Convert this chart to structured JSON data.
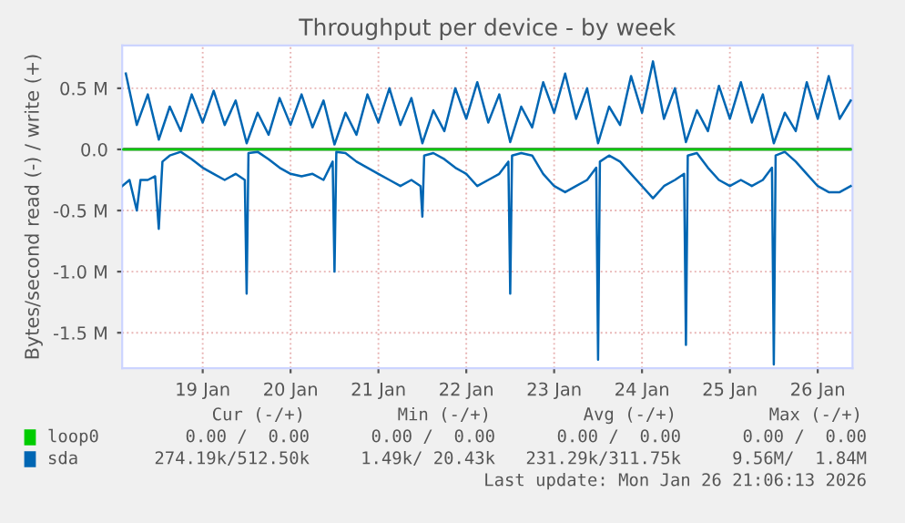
{
  "chart_data": {
    "type": "line",
    "title": "Throughput per device - by week",
    "ylabel": "Bytes/second read (-) / write (+)",
    "xlim": [
      "2026-01-18T14:00",
      "2026-01-26T21:30"
    ],
    "xticks": [
      {
        "value": "2026-01-19T12:00",
        "label": "19 Jan"
      },
      {
        "value": "2026-01-20T12:00",
        "label": "20 Jan"
      },
      {
        "value": "2026-01-21T12:00",
        "label": "21 Jan"
      },
      {
        "value": "2026-01-22T12:00",
        "label": "22 Jan"
      },
      {
        "value": "2026-01-23T12:00",
        "label": "23 Jan"
      },
      {
        "value": "2026-01-24T12:00",
        "label": "24 Jan"
      },
      {
        "value": "2026-01-25T12:00",
        "label": "25 Jan"
      },
      {
        "value": "2026-01-26T12:00",
        "label": "26 Jan"
      }
    ],
    "ylim": [
      -1.79,
      0.85
    ],
    "yticks": [
      {
        "value": -1.5,
        "label": "-1.5 M"
      },
      {
        "value": -1.0,
        "label": "-1.0 M"
      },
      {
        "value": -0.5,
        "label": "-0.5 M"
      },
      {
        "value": 0,
        "label": "0.0"
      },
      {
        "value": 0.5,
        "label": "0.5 M"
      }
    ],
    "grid": true,
    "legend": "bottom",
    "ref_lines": [
      {
        "axis": "y",
        "value": 0,
        "color": "#000000"
      }
    ],
    "series": [
      {
        "name": "loop0",
        "color": "#00cc00",
        "x": [
          "2026-01-18T14:00",
          "2026-01-26T21:00"
        ],
        "values": [
          0,
          0
        ]
      },
      {
        "name": "sda",
        "color": "#0066b3",
        "x": [
          "2026-01-18T15:00",
          "2026-01-18T18:00",
          "2026-01-18T21:00",
          "2026-01-19T00:00",
          "2026-01-19T03:00",
          "2026-01-19T06:00",
          "2026-01-19T09:00",
          "2026-01-19T12:00",
          "2026-01-19T15:00",
          "2026-01-19T18:00",
          "2026-01-19T21:00",
          "2026-01-20T00:00",
          "2026-01-20T03:00",
          "2026-01-20T06:00",
          "2026-01-20T09:00",
          "2026-01-20T12:00",
          "2026-01-20T15:00",
          "2026-01-20T18:00",
          "2026-01-20T21:00",
          "2026-01-21T00:00",
          "2026-01-21T03:00",
          "2026-01-21T06:00",
          "2026-01-21T09:00",
          "2026-01-21T12:00",
          "2026-01-21T15:00",
          "2026-01-21T18:00",
          "2026-01-21T21:00",
          "2026-01-22T00:00",
          "2026-01-22T03:00",
          "2026-01-22T06:00",
          "2026-01-22T09:00",
          "2026-01-22T12:00",
          "2026-01-22T15:00",
          "2026-01-22T18:00",
          "2026-01-22T21:00",
          "2026-01-23T00:00",
          "2026-01-23T03:00",
          "2026-01-23T06:00",
          "2026-01-23T09:00",
          "2026-01-23T12:00",
          "2026-01-23T15:00",
          "2026-01-23T18:00",
          "2026-01-23T21:00",
          "2026-01-24T00:00",
          "2026-01-24T03:00",
          "2026-01-24T06:00",
          "2026-01-24T09:00",
          "2026-01-24T12:00",
          "2026-01-24T15:00",
          "2026-01-24T18:00",
          "2026-01-24T21:00",
          "2026-01-25T00:00",
          "2026-01-25T03:00",
          "2026-01-25T06:00",
          "2026-01-25T09:00",
          "2026-01-25T12:00",
          "2026-01-25T15:00",
          "2026-01-25T18:00",
          "2026-01-25T21:00",
          "2026-01-26T00:00",
          "2026-01-26T03:00",
          "2026-01-26T06:00",
          "2026-01-26T09:00",
          "2026-01-26T12:00",
          "2026-01-26T15:00",
          "2026-01-26T18:00",
          "2026-01-26T21:00"
        ],
        "values": [
          0.62,
          0.2,
          0.45,
          0.08,
          0.35,
          0.15,
          0.45,
          0.22,
          0.48,
          0.2,
          0.4,
          0.05,
          0.3,
          0.12,
          0.42,
          0.2,
          0.45,
          0.18,
          0.4,
          0.04,
          0.3,
          0.12,
          0.45,
          0.22,
          0.5,
          0.2,
          0.42,
          0.05,
          0.32,
          0.15,
          0.5,
          0.25,
          0.55,
          0.22,
          0.45,
          0.06,
          0.35,
          0.18,
          0.55,
          0.3,
          0.62,
          0.25,
          0.5,
          0.05,
          0.35,
          0.2,
          0.6,
          0.3,
          0.72,
          0.25,
          0.5,
          0.06,
          0.32,
          0.15,
          0.52,
          0.25,
          0.55,
          0.22,
          0.45,
          0.05,
          0.3,
          0.15,
          0.55,
          0.25,
          0.6,
          0.25,
          0.4
        ]
      },
      {
        "color": "#0066b3",
        "x": [
          "2026-01-18T14:00",
          "2026-01-18T16:00",
          "2026-01-18T18:00",
          "2026-01-18T19:00",
          "2026-01-18T21:00",
          "2026-01-18T23:00",
          "2026-01-19T00:00",
          "2026-01-19T01:00",
          "2026-01-19T03:00",
          "2026-01-19T06:00",
          "2026-01-19T09:00",
          "2026-01-19T12:00",
          "2026-01-19T15:00",
          "2026-01-19T18:00",
          "2026-01-19T21:00",
          "2026-01-19T23:30",
          "2026-01-20T00:00",
          "2026-01-20T00:30",
          "2026-01-20T03:00",
          "2026-01-20T06:00",
          "2026-01-20T09:00",
          "2026-01-20T12:00",
          "2026-01-20T15:00",
          "2026-01-20T18:00",
          "2026-01-20T21:00",
          "2026-01-20T23:30",
          "2026-01-21T00:00",
          "2026-01-21T00:30",
          "2026-01-21T03:00",
          "2026-01-21T06:00",
          "2026-01-21T09:00",
          "2026-01-21T12:00",
          "2026-01-21T15:00",
          "2026-01-21T18:00",
          "2026-01-21T21:00",
          "2026-01-21T23:30",
          "2026-01-22T00:00",
          "2026-01-22T00:30",
          "2026-01-22T03:00",
          "2026-01-22T06:00",
          "2026-01-22T09:00",
          "2026-01-22T12:00",
          "2026-01-22T15:00",
          "2026-01-22T18:00",
          "2026-01-22T21:00",
          "2026-01-22T23:30",
          "2026-01-23T00:00",
          "2026-01-23T00:30",
          "2026-01-23T03:00",
          "2026-01-23T06:00",
          "2026-01-23T09:00",
          "2026-01-23T12:00",
          "2026-01-23T15:00",
          "2026-01-23T18:00",
          "2026-01-23T21:00",
          "2026-01-23T23:30",
          "2026-01-24T00:00",
          "2026-01-24T00:30",
          "2026-01-24T03:00",
          "2026-01-24T06:00",
          "2026-01-24T09:00",
          "2026-01-24T12:00",
          "2026-01-24T15:00",
          "2026-01-24T18:00",
          "2026-01-24T21:00",
          "2026-01-24T23:30",
          "2026-01-25T00:00",
          "2026-01-25T00:30",
          "2026-01-25T03:00",
          "2026-01-25T06:00",
          "2026-01-25T09:00",
          "2026-01-25T12:00",
          "2026-01-25T15:00",
          "2026-01-25T18:00",
          "2026-01-25T21:00",
          "2026-01-25T23:30",
          "2026-01-26T00:00",
          "2026-01-26T00:30",
          "2026-01-26T03:00",
          "2026-01-26T06:00",
          "2026-01-26T09:00",
          "2026-01-26T12:00",
          "2026-01-26T15:00",
          "2026-01-26T18:00",
          "2026-01-26T21:00"
        ],
        "values": [
          -0.3,
          -0.25,
          -0.5,
          -0.25,
          -0.25,
          -0.22,
          -0.65,
          -0.1,
          -0.05,
          -0.02,
          -0.08,
          -0.15,
          -0.2,
          -0.25,
          -0.2,
          -0.25,
          -1.18,
          -0.03,
          -0.02,
          -0.08,
          -0.15,
          -0.2,
          -0.22,
          -0.2,
          -0.25,
          -0.1,
          -1.0,
          -0.02,
          -0.03,
          -0.1,
          -0.15,
          -0.2,
          -0.25,
          -0.3,
          -0.25,
          -0.3,
          -0.55,
          -0.05,
          -0.03,
          -0.08,
          -0.15,
          -0.2,
          -0.3,
          -0.25,
          -0.2,
          -0.1,
          -1.18,
          -0.05,
          -0.03,
          -0.05,
          -0.2,
          -0.3,
          -0.35,
          -0.3,
          -0.25,
          -0.15,
          -1.72,
          -0.1,
          -0.05,
          -0.1,
          -0.2,
          -0.3,
          -0.4,
          -0.3,
          -0.25,
          -0.2,
          -1.6,
          -0.05,
          -0.03,
          -0.15,
          -0.25,
          -0.3,
          -0.25,
          -0.3,
          -0.25,
          -0.15,
          -1.76,
          -0.05,
          -0.02,
          -0.1,
          -0.2,
          -0.3,
          -0.35,
          -0.35,
          -0.3
        ]
      }
    ],
    "annotations": [
      "Cur (-/+)",
      "Min (-/+)",
      "Avg (-/+)",
      "Max (-/+)",
      "0.00 /  0.00",
      "0.00 /  0.00",
      "0.00 /  0.00",
      "0.00 /  0.00",
      "274.19k/512.50k",
      "1.49k/ 20.43k",
      "231.29k/311.75k",
      "9.56M/  1.84M",
      "Last update: Mon Jan 26 21:06:13 2026"
    ]
  }
}
